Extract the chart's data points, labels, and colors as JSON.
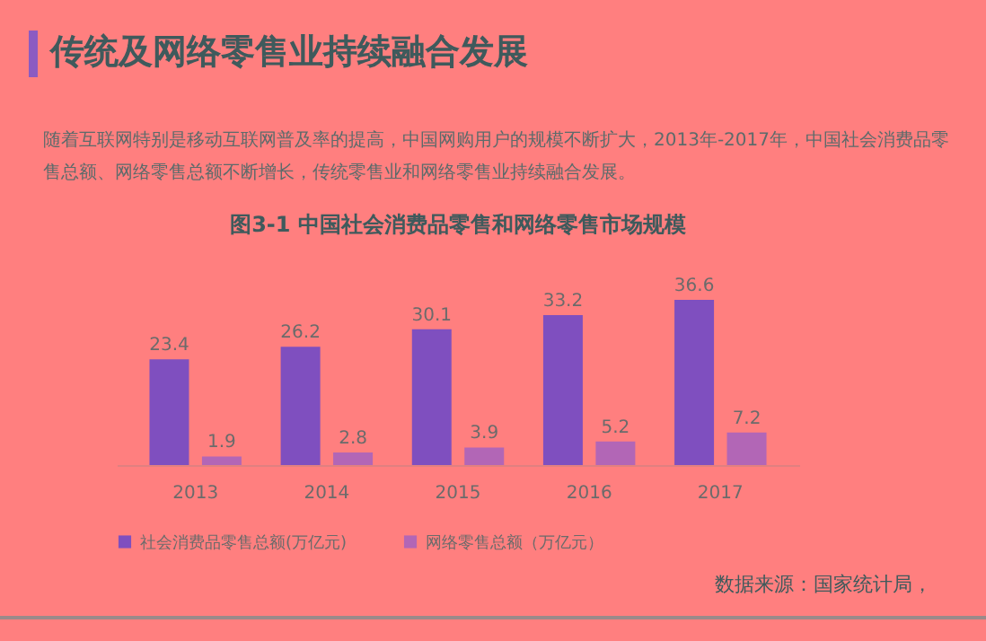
{
  "chart_data": {
    "type": "bar",
    "title": "传统及网络零售业持续融合发展",
    "subtitle": "图3-1 中国社会消费品零售和网络零售市场规模",
    "annotations": [
      "随着互联网特别是移动互联网普及率的提高，中国网购用户的规模不断扩大，2013年-2017年，中国社会消费品零售总额、网络零售总额不断增长，传统零售业和网络零售业持续融合发展。",
      "数据来源：国家统计局，"
    ],
    "categories": [
      "2013",
      "2014",
      "2015",
      "2016",
      "2017"
    ],
    "series": [
      {
        "name": "社会消费品零售总额(万亿元)",
        "color": "#7f4fbf",
        "values": [
          23.4,
          26.2,
          30.1,
          33.2,
          36.6
        ]
      },
      {
        "name": "网络零售总额（万亿元）",
        "color": "#b266b6",
        "values": [
          1.9,
          2.8,
          3.9,
          5.2,
          7.2
        ]
      }
    ],
    "data_labels": true,
    "legend": "bottom",
    "tick_labels": "x"
  }
}
